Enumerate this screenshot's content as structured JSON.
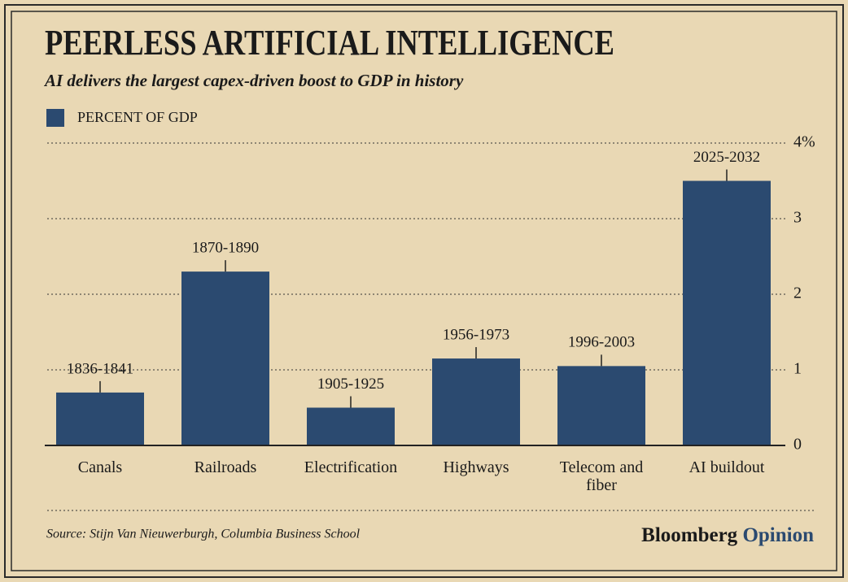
{
  "chart_data": {
    "type": "bar",
    "title": "PEERLESS ARTIFICIAL INTELLIGENCE",
    "subtitle": "AI delivers the largest capex-driven boost to GDP in history",
    "categories": [
      "Canals",
      "Railroads",
      "Electrification",
      "Highways",
      "Telecom and fiber",
      "AI buildout"
    ],
    "periods": [
      "1836-1841",
      "1870-1890",
      "1905-1925",
      "1956-1973",
      "1996-2003",
      "2025-2032"
    ],
    "series": [
      {
        "name": "PERCENT OF GDP",
        "color": "#2b4a70",
        "values": [
          0.7,
          2.3,
          0.5,
          1.15,
          1.05,
          3.5
        ]
      }
    ],
    "ylim": [
      0,
      4
    ],
    "yticks": [
      0,
      1,
      2,
      3,
      {
        "value": 4,
        "label": "4%"
      }
    ],
    "grid": true,
    "source": "Source: Stijn Van Nieuwerburgh, Columbia Business School",
    "brand": "Bloomberg",
    "brand_suffix": "Opinion"
  }
}
